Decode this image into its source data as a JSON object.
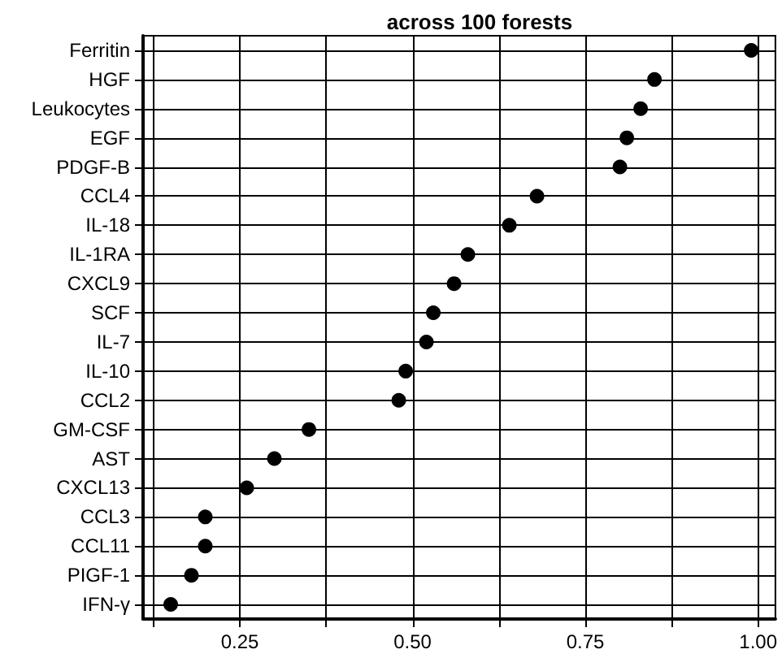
{
  "chart_data": {
    "type": "scatter",
    "title": "across 100 forests",
    "categories": [
      "Ferritin",
      "HGF",
      "Leukocytes",
      "EGF",
      "PDGF-B",
      "CCL4",
      "IL-18",
      "IL-1RA",
      "CXCL9",
      "SCF",
      "IL-7",
      "IL-10",
      "CCL2",
      "GM-CSF",
      "AST",
      "CXCL13",
      "CCL3",
      "CCL11",
      "PIGF-1",
      "IFN-γ"
    ],
    "orientation": "horizontal",
    "values": [
      0.99,
      0.85,
      0.83,
      0.81,
      0.8,
      0.68,
      0.64,
      0.58,
      0.56,
      0.53,
      0.52,
      0.49,
      0.48,
      0.35,
      0.3,
      0.26,
      0.2,
      0.2,
      0.18,
      0.15
    ],
    "color": "#000000",
    "xlim": [
      0.11,
      1.025
    ],
    "xticks": [
      {
        "value": 0.125,
        "label": null
      },
      {
        "value": 0.25,
        "label": "0.25"
      },
      {
        "value": 0.375,
        "label": null
      },
      {
        "value": 0.5,
        "label": "0.50"
      },
      {
        "value": 0.625,
        "label": null
      },
      {
        "value": 0.75,
        "label": "0.75"
      },
      {
        "value": 0.875,
        "label": null
      },
      {
        "value": 1.0,
        "label": "1.00"
      }
    ],
    "grid": true,
    "marker": "circle"
  }
}
